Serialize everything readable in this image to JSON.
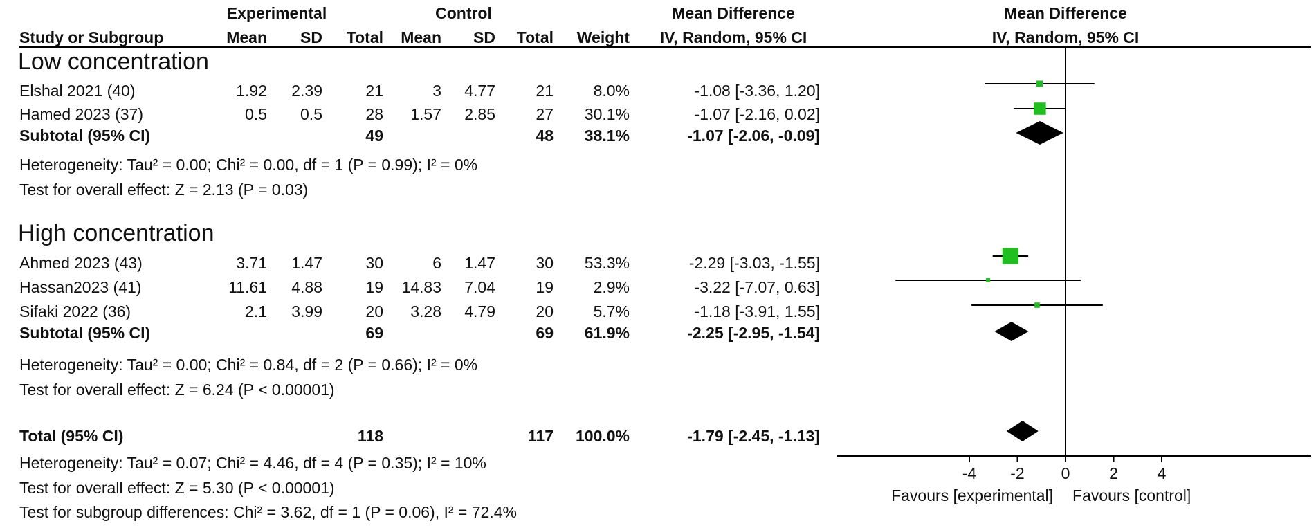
{
  "header": {
    "experimental": "Experimental",
    "control": "Control",
    "md_top": "Mean Difference",
    "md_bottom": "IV, Random, 95% CI",
    "plot_top": "Mean Difference",
    "plot_bottom": "IV, Random, 95% CI",
    "study": "Study or Subgroup",
    "mean": "Mean",
    "sd": "SD",
    "total": "Total",
    "weight": "Weight"
  },
  "groups": [
    {
      "title": "Low concentration",
      "studies": [
        {
          "name": "Elshal 2021 (40)",
          "e_mean": "1.92",
          "e_sd": "2.39",
          "e_total": "21",
          "c_mean": "3",
          "c_sd": "4.77",
          "c_total": "21",
          "weight": "8.0%",
          "ci": "-1.08 [-3.36, 1.20]"
        },
        {
          "name": "Hamed 2023 (37)",
          "e_mean": "0.5",
          "e_sd": "0.5",
          "e_total": "28",
          "c_mean": "1.57",
          "c_sd": "2.85",
          "c_total": "27",
          "weight": "30.1%",
          "ci": "-1.07 [-2.16, 0.02]"
        }
      ],
      "subtotal": {
        "label": "Subtotal (95% CI)",
        "e_total": "49",
        "c_total": "48",
        "weight": "38.1%",
        "ci": "-1.07 [-2.06, -0.09]"
      },
      "heterogeneity": "Heterogeneity: Tau² = 0.00; Chi² = 0.00, df = 1 (P = 0.99); I² = 0%",
      "overall": "Test for overall effect: Z = 2.13 (P = 0.03)"
    },
    {
      "title": "High concentration",
      "studies": [
        {
          "name": "Ahmed 2023 (43)",
          "e_mean": "3.71",
          "e_sd": "1.47",
          "e_total": "30",
          "c_mean": "6",
          "c_sd": "1.47",
          "c_total": "30",
          "weight": "53.3%",
          "ci": "-2.29 [-3.03, -1.55]"
        },
        {
          "name": "Hassan2023 (41)",
          "e_mean": "11.61",
          "e_sd": "4.88",
          "e_total": "19",
          "c_mean": "14.83",
          "c_sd": "7.04",
          "c_total": "19",
          "weight": "2.9%",
          "ci": "-3.22 [-7.07, 0.63]"
        },
        {
          "name": "Sifaki 2022 (36)",
          "e_mean": "2.1",
          "e_sd": "3.99",
          "e_total": "20",
          "c_mean": "3.28",
          "c_sd": "4.79",
          "c_total": "20",
          "weight": "5.7%",
          "ci": "-1.18 [-3.91, 1.55]"
        }
      ],
      "subtotal": {
        "label": "Subtotal (95% CI)",
        "e_total": "69",
        "c_total": "69",
        "weight": "61.9%",
        "ci": "-2.25 [-2.95, -1.54]"
      },
      "heterogeneity": "Heterogeneity: Tau² = 0.00; Chi² = 0.84, df = 2 (P = 0.66); I² = 0%",
      "overall": "Test for overall effect: Z = 6.24 (P < 0.00001)"
    }
  ],
  "total": {
    "label": "Total (95% CI)",
    "e_total": "118",
    "c_total": "117",
    "weight": "100.0%",
    "ci": "-1.79 [-2.45, -1.13]",
    "heterogeneity": "Heterogeneity: Tau² = 0.07; Chi² = 4.46, df = 4 (P = 0.35); I² = 10%",
    "overall": "Test for overall effect: Z = 5.30 (P < 0.00001)",
    "subgroup": "Test for subgroup differences: Chi² = 3.62, df = 1 (P = 0.06), I² = 72.4%"
  },
  "axis": {
    "ticks": [
      -4,
      -2,
      0,
      2,
      4
    ],
    "tick_labels": [
      "-4",
      "-2",
      "0",
      "2",
      "4"
    ],
    "favours_left": "Favours [experimental]",
    "favours_right": "Favours [control]"
  },
  "colors": {
    "square": "#1fbf1f",
    "diamond": "#000000",
    "line": "#000000"
  },
  "chart_data": {
    "type": "forest",
    "title": "Mean Difference, IV, Random, 95% CI",
    "xlim": [
      -10,
      10
    ],
    "xticks": [
      -4,
      -2,
      0,
      2,
      4
    ],
    "xlabel_left": "Favours [experimental]",
    "xlabel_right": "Favours [control]",
    "studies": [
      {
        "name": "Elshal 2021 (40)",
        "group": "Low concentration",
        "md": -1.08,
        "lo": -3.36,
        "hi": 1.2,
        "weight": 8.0
      },
      {
        "name": "Hamed 2023 (37)",
        "group": "Low concentration",
        "md": -1.07,
        "lo": -2.16,
        "hi": 0.02,
        "weight": 30.1
      },
      {
        "name": "Ahmed 2023 (43)",
        "group": "High concentration",
        "md": -2.29,
        "lo": -3.03,
        "hi": -1.55,
        "weight": 53.3
      },
      {
        "name": "Hassan2023 (41)",
        "group": "High concentration",
        "md": -3.22,
        "lo": -7.07,
        "hi": 0.63,
        "weight": 2.9
      },
      {
        "name": "Sifaki 2022 (36)",
        "group": "High concentration",
        "md": -1.18,
        "lo": -3.91,
        "hi": 1.55,
        "weight": 5.7
      }
    ],
    "pooled": [
      {
        "name": "Subtotal Low concentration",
        "md": -1.07,
        "lo": -2.06,
        "hi": -0.09
      },
      {
        "name": "Subtotal High concentration",
        "md": -2.25,
        "lo": -2.95,
        "hi": -1.54
      },
      {
        "name": "Total",
        "md": -1.79,
        "lo": -2.45,
        "hi": -1.13
      }
    ]
  }
}
